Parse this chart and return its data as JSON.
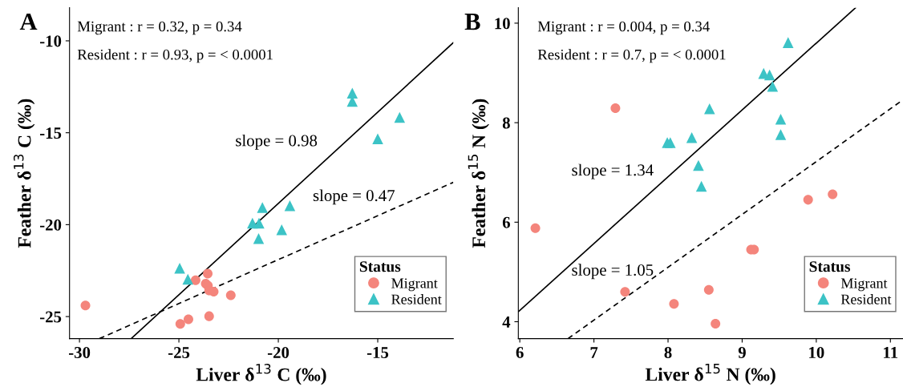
{
  "chart_data": [
    {
      "type": "scatter",
      "title": "A",
      "xlabel": "Liver δ$^{13}$ C (‰)",
      "ylabel": "Feather δ$^{13}$ C (‰)",
      "legend_title": "Status",
      "legend": "bottom right",
      "grid": false,
      "xlim": [
        -30.5,
        -11.2
      ],
      "ylim": [
        -26.2,
        -8.2
      ],
      "xticks": [
        -30,
        -25,
        -20,
        -15
      ],
      "yticks": [
        -25,
        -20,
        -15,
        -10
      ],
      "annotations": [
        "Migrant : r = 0.32, p = 0.34",
        "Resident : r = 0.93, p = < 0.0001",
        "slope = 0.98",
        "slope = 0.47"
      ],
      "series": [
        {
          "name": "Migrant",
          "color": "#f4857c",
          "marker": "circle",
          "x": [
            -29.7,
            -24.93,
            -24.52,
            -23.48,
            -23.55,
            -24.16,
            -23.65,
            -23.54,
            -23.48,
            -23.25,
            -22.39
          ],
          "values": [
            -24.4,
            -25.4,
            -25.15,
            -24.98,
            -22.66,
            -23.02,
            -23.21,
            -23.32,
            -23.58,
            -23.64,
            -23.84
          ]
        },
        {
          "name": "Resident",
          "color": "#3cc3c6",
          "marker": "triangle",
          "x": [
            -24.96,
            -24.55,
            -21.3,
            -20.97,
            -20.8,
            -20.99,
            -19.83,
            -19.42,
            -16.28,
            -16.28,
            -15.0,
            -13.9
          ],
          "values": [
            -22.37,
            -22.97,
            -19.92,
            -19.92,
            -19.07,
            -20.76,
            -20.28,
            -18.97,
            -12.85,
            -13.29,
            -15.33,
            -14.16
          ]
        },
        {
          "type": "line",
          "color": "#000000",
          "line_style": "solid",
          "x": [
            -27.4,
            -11.2
          ],
          "values": [
            -26.2,
            -10.1
          ]
        },
        {
          "type": "line",
          "color": "#000000",
          "line_style": "dashed",
          "x": [
            -29.0,
            -11.2
          ],
          "values": [
            -26.2,
            -17.7
          ]
        }
      ]
    },
    {
      "type": "scatter",
      "title": "B",
      "xlabel": "Liver δ$^{15}$ N (‰)",
      "ylabel": "Feather δ$^{15}$ N (‰)",
      "legend_title": "Status",
      "legend": "bottom right",
      "grid": false,
      "xlim": [
        5.98,
        11.17
      ],
      "ylim": [
        3.66,
        10.31
      ],
      "xticks": [
        6,
        7,
        8,
        9,
        10,
        11
      ],
      "yticks": [
        4,
        6,
        8,
        10
      ],
      "annotations": [
        "Migrant : r = 0.004, p = 0.34",
        "Resident : r = 0.7, p = < 0.0001",
        "slope = 1.34",
        "slope = 1.05"
      ],
      "series": [
        {
          "name": "Migrant",
          "color": "#f4857c",
          "marker": "circle",
          "x": [
            6.21,
            7.29,
            7.42,
            8.08,
            8.55,
            8.64,
            9.12,
            9.16,
            9.89,
            10.22
          ],
          "values": [
            5.88,
            8.29,
            4.6,
            4.36,
            4.64,
            3.96,
            5.45,
            5.45,
            6.45,
            6.56
          ]
        },
        {
          "name": "Resident",
          "color": "#3cc3c6",
          "marker": "triangle",
          "x": [
            7.99,
            8.03,
            8.32,
            8.41,
            8.45,
            8.56,
            9.29,
            9.37,
            9.41,
            9.52,
            9.52,
            9.62
          ],
          "values": [
            7.6,
            7.6,
            7.7,
            7.14,
            6.72,
            8.28,
            8.99,
            8.96,
            8.73,
            8.07,
            7.76,
            9.61
          ]
        },
        {
          "type": "line",
          "color": "#000000",
          "line_style": "solid",
          "x": [
            5.98,
            10.53
          ],
          "values": [
            4.2,
            10.31
          ]
        },
        {
          "type": "line",
          "color": "#000000",
          "line_style": "dashed",
          "x": [
            6.65,
            11.17
          ],
          "values": [
            3.66,
            8.46
          ]
        }
      ]
    }
  ]
}
